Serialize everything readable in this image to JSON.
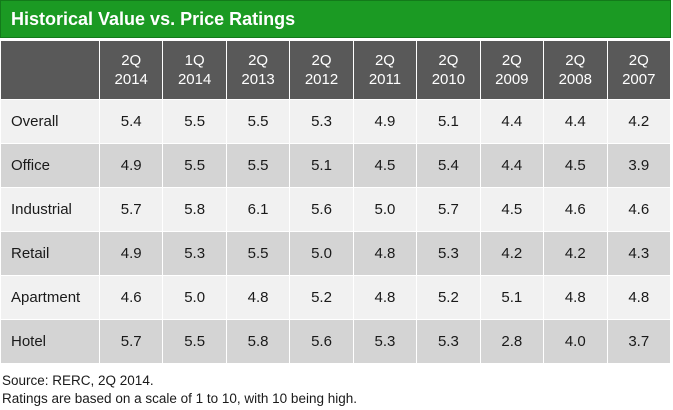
{
  "chart_data": {
    "type": "table",
    "title": "Historical Value vs. Price Ratings",
    "columns": [
      "2Q\n2014",
      "1Q\n2014",
      "2Q\n2013",
      "2Q\n2012",
      "2Q\n2011",
      "2Q\n2010",
      "2Q\n2009",
      "2Q\n2008",
      "2Q\n2007"
    ],
    "rows": [
      {
        "label": "Overall",
        "values": [
          "5.4",
          "5.5",
          "5.5",
          "5.3",
          "4.9",
          "5.1",
          "4.4",
          "4.4",
          "4.2"
        ]
      },
      {
        "label": "Office",
        "values": [
          "4.9",
          "5.5",
          "5.5",
          "5.1",
          "4.5",
          "5.4",
          "4.4",
          "4.5",
          "3.9"
        ]
      },
      {
        "label": "Industrial",
        "values": [
          "5.7",
          "5.8",
          "6.1",
          "5.6",
          "5.0",
          "5.7",
          "4.5",
          "4.6",
          "4.6"
        ]
      },
      {
        "label": "Retail",
        "values": [
          "4.9",
          "5.3",
          "5.5",
          "5.0",
          "4.8",
          "5.3",
          "4.2",
          "4.2",
          "4.3"
        ]
      },
      {
        "label": "Apartment",
        "values": [
          "4.6",
          "5.0",
          "4.8",
          "5.2",
          "4.8",
          "5.2",
          "5.1",
          "4.8",
          "4.8"
        ]
      },
      {
        "label": "Hotel",
        "values": [
          "5.7",
          "5.5",
          "5.8",
          "5.6",
          "5.3",
          "5.3",
          "2.8",
          "4.0",
          "3.7"
        ]
      }
    ]
  },
  "footer": {
    "source": "Source: RERC, 2Q 2014.",
    "note": "Ratings are based on a scale of 1 to 10, with 10 being high."
  },
  "colors": {
    "title_bar": "#1b9a23",
    "header_bg": "#595959",
    "row_light": "#f1f1f1",
    "row_dark": "#d4d4d4"
  }
}
